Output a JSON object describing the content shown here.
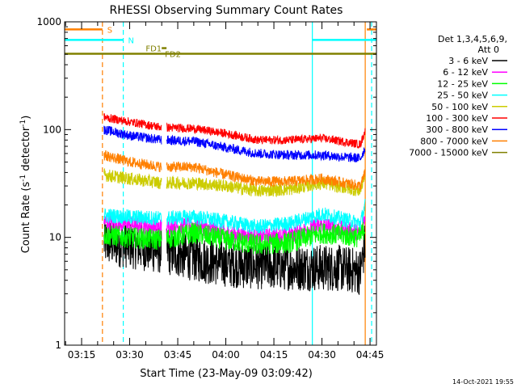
{
  "chart_data": {
    "type": "line",
    "title": "RHESSI Observing Summary Count Rates",
    "xlabel": "Start Time (23-May-09 03:09:42)",
    "ylabel_main": "Count Rate (s",
    "ylabel_sup1": "-1",
    "ylabel_mid": " detector",
    "ylabel_sup2": "-1",
    "ylabel_end": ")",
    "ylog": true,
    "ylim": [
      1,
      1000
    ],
    "xlim": [
      "03:09:42",
      "04:47:00"
    ],
    "x_ticks": [
      "03:15",
      "03:30",
      "03:45",
      "04:00",
      "04:15",
      "04:30",
      "04:45"
    ],
    "y_ticks": [
      {
        "label": "1",
        "value": 1
      },
      {
        "label": "10",
        "value": 10
      },
      {
        "label": "100",
        "value": 100
      },
      {
        "label": "1000",
        "value": 1000
      }
    ],
    "legend": {
      "position": "right",
      "header1": "Det 1,3,4,5,6,9,",
      "header2": "Att 0"
    },
    "footer_timestamp": "14-Oct-2021 19:55",
    "data_gap": [
      "03:40:00",
      "03:41:30"
    ],
    "series": [
      {
        "name": "3 - 6 keV",
        "color": "#000000",
        "points": [
          [
            "03:22:00",
            9
          ],
          [
            "03:30:00",
            8.5
          ],
          [
            "03:40:00",
            7.5
          ],
          [
            "03:45:00",
            7
          ],
          [
            "03:55:00",
            6
          ],
          [
            "04:05:00",
            5.5
          ],
          [
            "04:20:00",
            5.3
          ],
          [
            "04:35:00",
            5.2
          ],
          [
            "04:42:00",
            4.8
          ],
          [
            "04:43:30",
            9
          ]
        ]
      },
      {
        "name": "6 - 12 keV",
        "color": "#ff00ff",
        "points": [
          [
            "03:22:00",
            14
          ],
          [
            "03:30:00",
            13
          ],
          [
            "03:40:00",
            12.5
          ],
          [
            "03:50:00",
            13
          ],
          [
            "04:00:00",
            11
          ],
          [
            "04:10:00",
            10
          ],
          [
            "04:20:00",
            10.5
          ],
          [
            "04:30:00",
            13
          ],
          [
            "04:42:00",
            11
          ],
          [
            "04:43:30",
            16
          ]
        ]
      },
      {
        "name": "12 - 25 keV",
        "color": "#00ff00",
        "points": [
          [
            "03:22:00",
            10.5
          ],
          [
            "03:30:00",
            10
          ],
          [
            "03:40:00",
            9.5
          ],
          [
            "03:50:00",
            11
          ],
          [
            "04:00:00",
            9.5
          ],
          [
            "04:10:00",
            8.5
          ],
          [
            "04:20:00",
            9
          ],
          [
            "04:30:00",
            11
          ],
          [
            "04:42:00",
            10
          ],
          [
            "04:43:30",
            13
          ]
        ]
      },
      {
        "name": "25 - 50 keV",
        "color": "#00ffff",
        "points": [
          [
            "03:22:00",
            16
          ],
          [
            "03:30:00",
            15.5
          ],
          [
            "03:40:00",
            15
          ],
          [
            "03:50:00",
            15.5
          ],
          [
            "04:00:00",
            14
          ],
          [
            "04:10:00",
            12.5
          ],
          [
            "04:20:00",
            13.5
          ],
          [
            "04:30:00",
            16.5
          ],
          [
            "04:42:00",
            13.5
          ],
          [
            "04:43:30",
            20
          ]
        ]
      },
      {
        "name": "50 - 100 keV",
        "color": "#cccc00",
        "points": [
          [
            "03:22:00",
            38
          ],
          [
            "03:30:00",
            35
          ],
          [
            "03:40:00",
            32
          ],
          [
            "03:50:00",
            32
          ],
          [
            "04:00:00",
            30
          ],
          [
            "04:10:00",
            27
          ],
          [
            "04:20:00",
            28
          ],
          [
            "04:30:00",
            32
          ],
          [
            "04:42:00",
            27
          ],
          [
            "04:43:30",
            40
          ]
        ]
      },
      {
        "name": "100 - 300 keV",
        "color": "#ff0000",
        "points": [
          [
            "03:22:00",
            130
          ],
          [
            "03:30:00",
            118
          ],
          [
            "03:40:00",
            105
          ],
          [
            "03:50:00",
            102
          ],
          [
            "04:00:00",
            92
          ],
          [
            "04:10:00",
            80
          ],
          [
            "04:20:00",
            80
          ],
          [
            "04:30:00",
            83
          ],
          [
            "04:42:00",
            73
          ],
          [
            "04:43:30",
            98
          ]
        ]
      },
      {
        "name": "300 - 800 keV",
        "color": "#0000ff",
        "points": [
          [
            "03:22:00",
            100
          ],
          [
            "03:30:00",
            88
          ],
          [
            "03:40:00",
            80
          ],
          [
            "03:50:00",
            78
          ],
          [
            "04:00:00",
            68
          ],
          [
            "04:10:00",
            60
          ],
          [
            "04:20:00",
            58
          ],
          [
            "04:30:00",
            58
          ],
          [
            "04:42:00",
            54
          ],
          [
            "04:43:30",
            68
          ]
        ]
      },
      {
        "name": "800 - 7000 keV",
        "color": "#ff8000",
        "points": [
          [
            "03:22:00",
            58
          ],
          [
            "03:30:00",
            50
          ],
          [
            "03:40:00",
            45
          ],
          [
            "03:50:00",
            45
          ],
          [
            "04:00:00",
            38
          ],
          [
            "04:10:00",
            33
          ],
          [
            "04:20:00",
            33
          ],
          [
            "04:30:00",
            35
          ],
          [
            "04:42:00",
            30
          ],
          [
            "04:43:30",
            40
          ]
        ]
      },
      {
        "name": "7000 - 15000 keV",
        "color": "#808000",
        "points": []
      }
    ],
    "flags": [
      {
        "label": "S",
        "color": "#ff8000",
        "value": 850,
        "intervals": [
          [
            "03:09:42",
            "03:21:30"
          ],
          [
            "04:44:00",
            "04:47:00"
          ]
        ],
        "label_at": "03:23:00"
      },
      {
        "label": "N",
        "color": "#00ffff",
        "value": 680,
        "intervals": [
          [
            "03:09:42",
            "03:28:00"
          ],
          [
            "04:27:00",
            "04:47:00"
          ]
        ],
        "label_at": "03:29:30"
      },
      {
        "label": "FD1",
        "color": "#808000",
        "value": 570,
        "intervals": [
          [
            "03:40:00",
            "03:41:30"
          ]
        ],
        "label_at": "03:35:00"
      },
      {
        "label": "FD2",
        "color": "#808000",
        "value": 505,
        "intervals": [
          [
            "03:09:42",
            "04:47:00"
          ]
        ],
        "label_at": "03:41:00"
      }
    ],
    "vlines": [
      {
        "time": "03:21:30",
        "color": "#ff8000",
        "style": "dashed"
      },
      {
        "time": "03:28:00",
        "color": "#00ffff",
        "style": "dashed"
      },
      {
        "time": "04:27:00",
        "color": "#00ffff",
        "style": "solid"
      },
      {
        "time": "04:43:30",
        "color": "#ff8000",
        "style": "solid"
      },
      {
        "time": "04:45:30",
        "color": "#00ffff",
        "style": "dashed"
      }
    ]
  }
}
